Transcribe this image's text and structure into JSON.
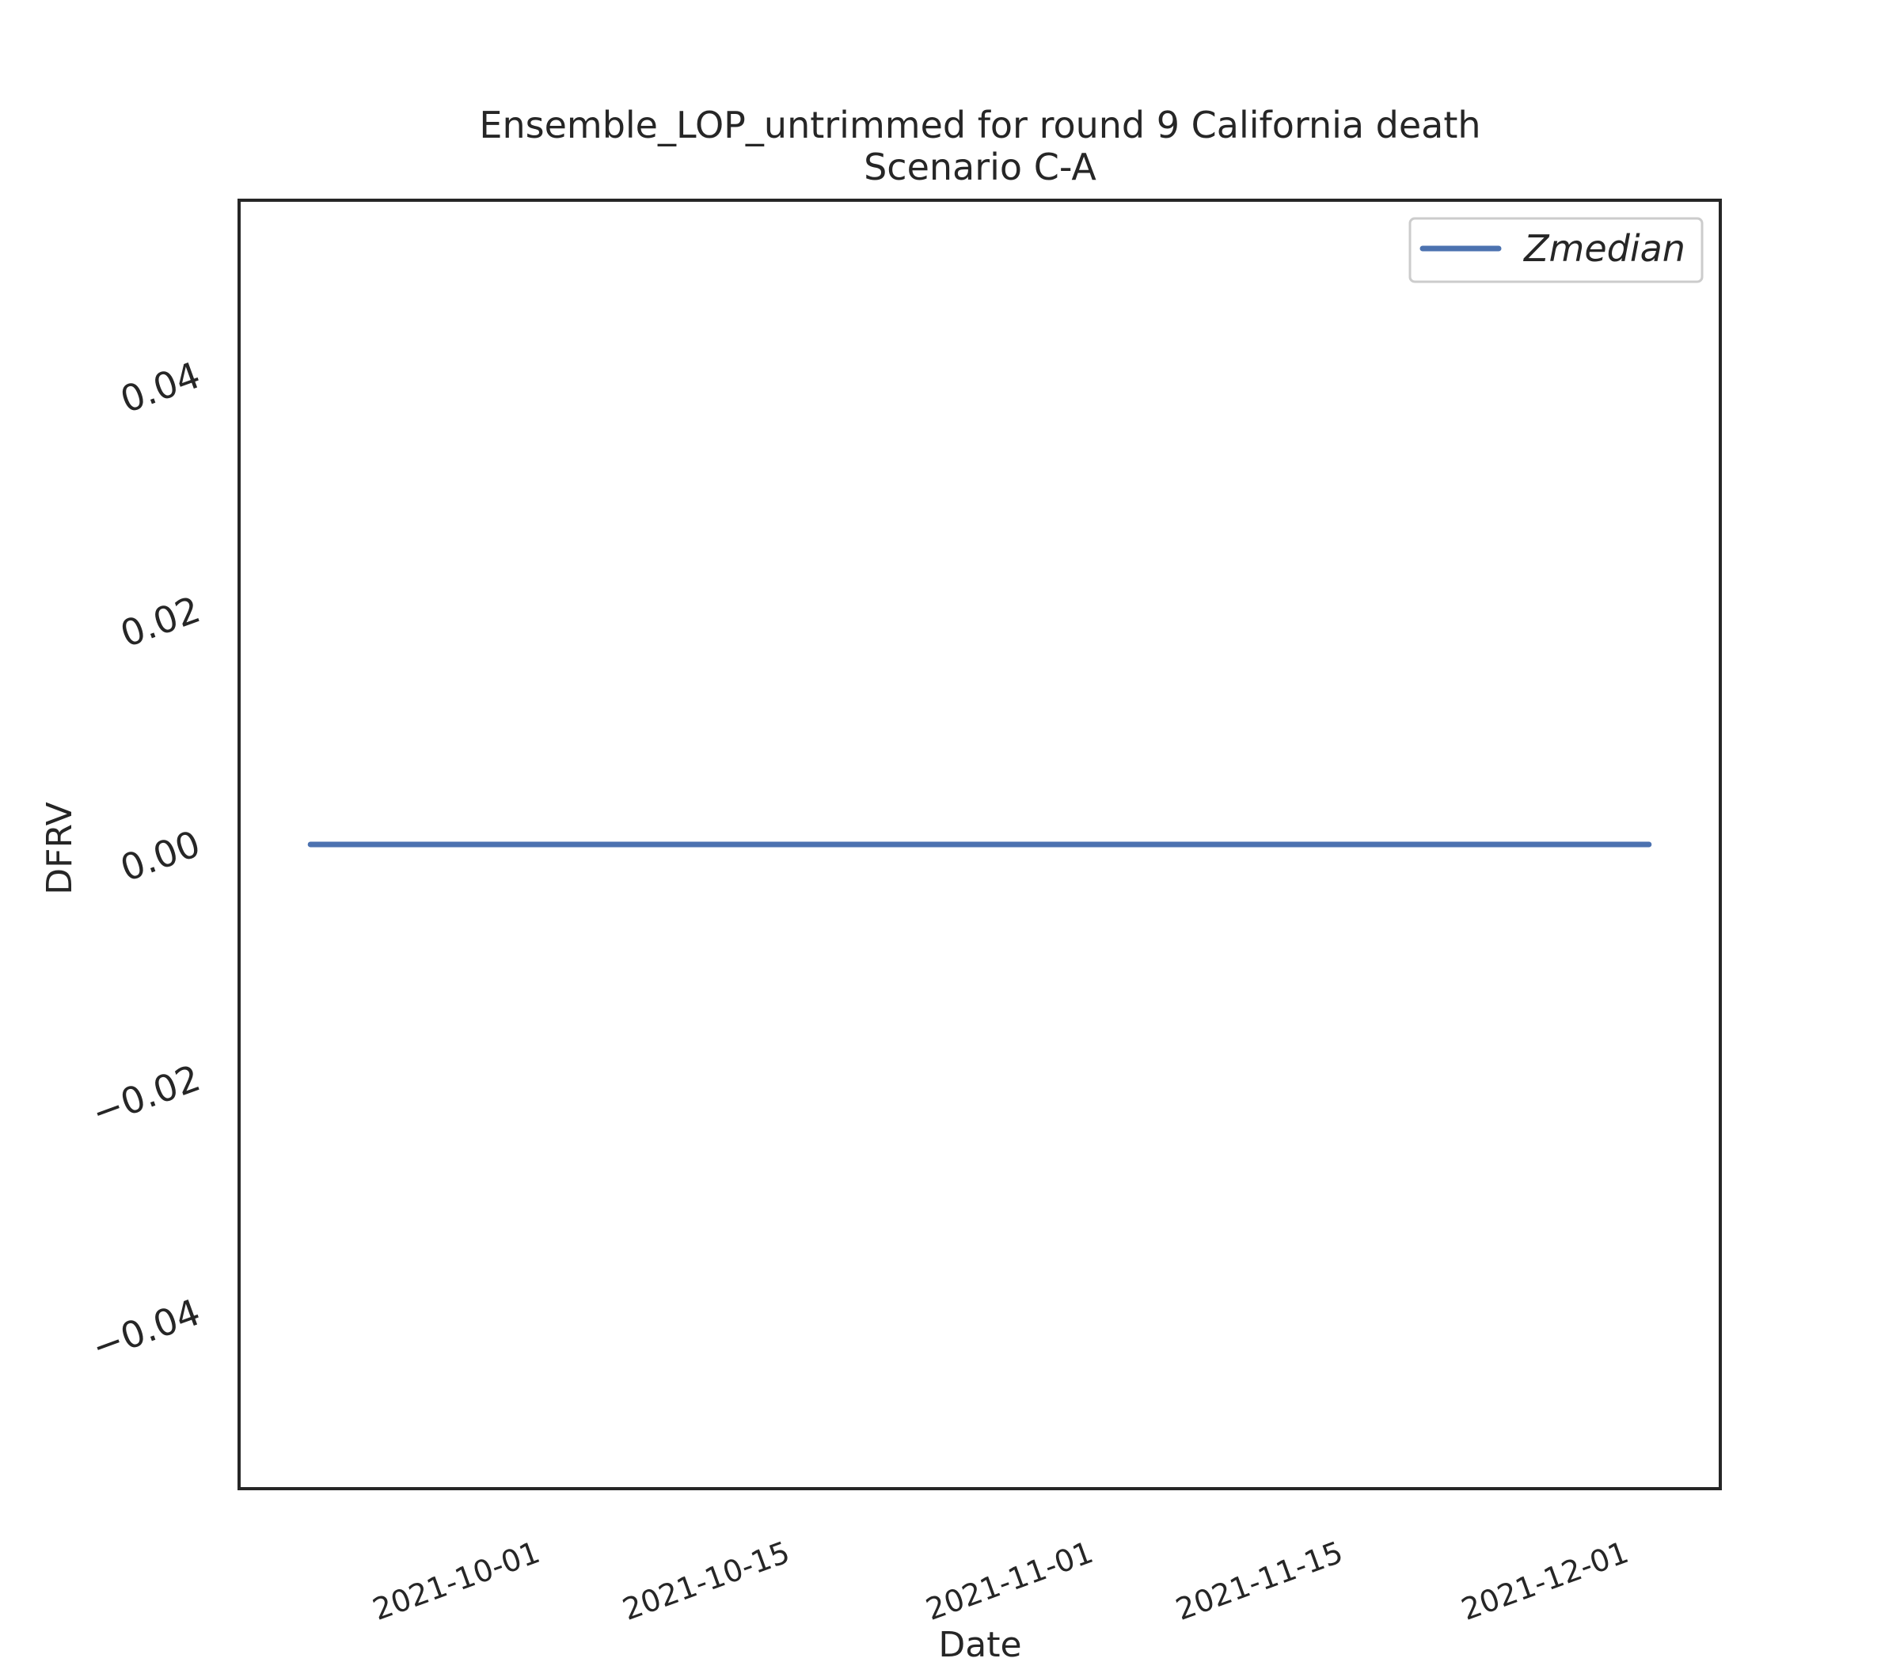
{
  "chart_data": {
    "type": "line",
    "title_line1": "Ensemble_LOP_untrimmed for round 9 California death",
    "title_line2": "Scenario C-A",
    "xlabel": "Date",
    "ylabel": "DFRV",
    "x_range": [
      "2021-09-19",
      "2021-12-11"
    ],
    "ylim": [
      -0.055,
      0.055
    ],
    "x_ticks": [
      "2021-10-01",
      "2021-10-15",
      "2021-11-01",
      "2021-11-15",
      "2021-12-01"
    ],
    "y_ticks": [
      {
        "value": -0.04,
        "label": "−0.04"
      },
      {
        "value": -0.02,
        "label": "−0.02"
      },
      {
        "value": 0.0,
        "label": "0.00"
      },
      {
        "value": 0.02,
        "label": "0.02"
      },
      {
        "value": 0.04,
        "label": "0.04"
      }
    ],
    "grid": false,
    "legend_position": "top-right",
    "series": [
      {
        "name": "Zmedian",
        "color": "#4c72b0",
        "x": [
          "2021-09-23",
          "2021-12-07"
        ],
        "y": [
          0.0,
          0.0
        ]
      }
    ]
  }
}
